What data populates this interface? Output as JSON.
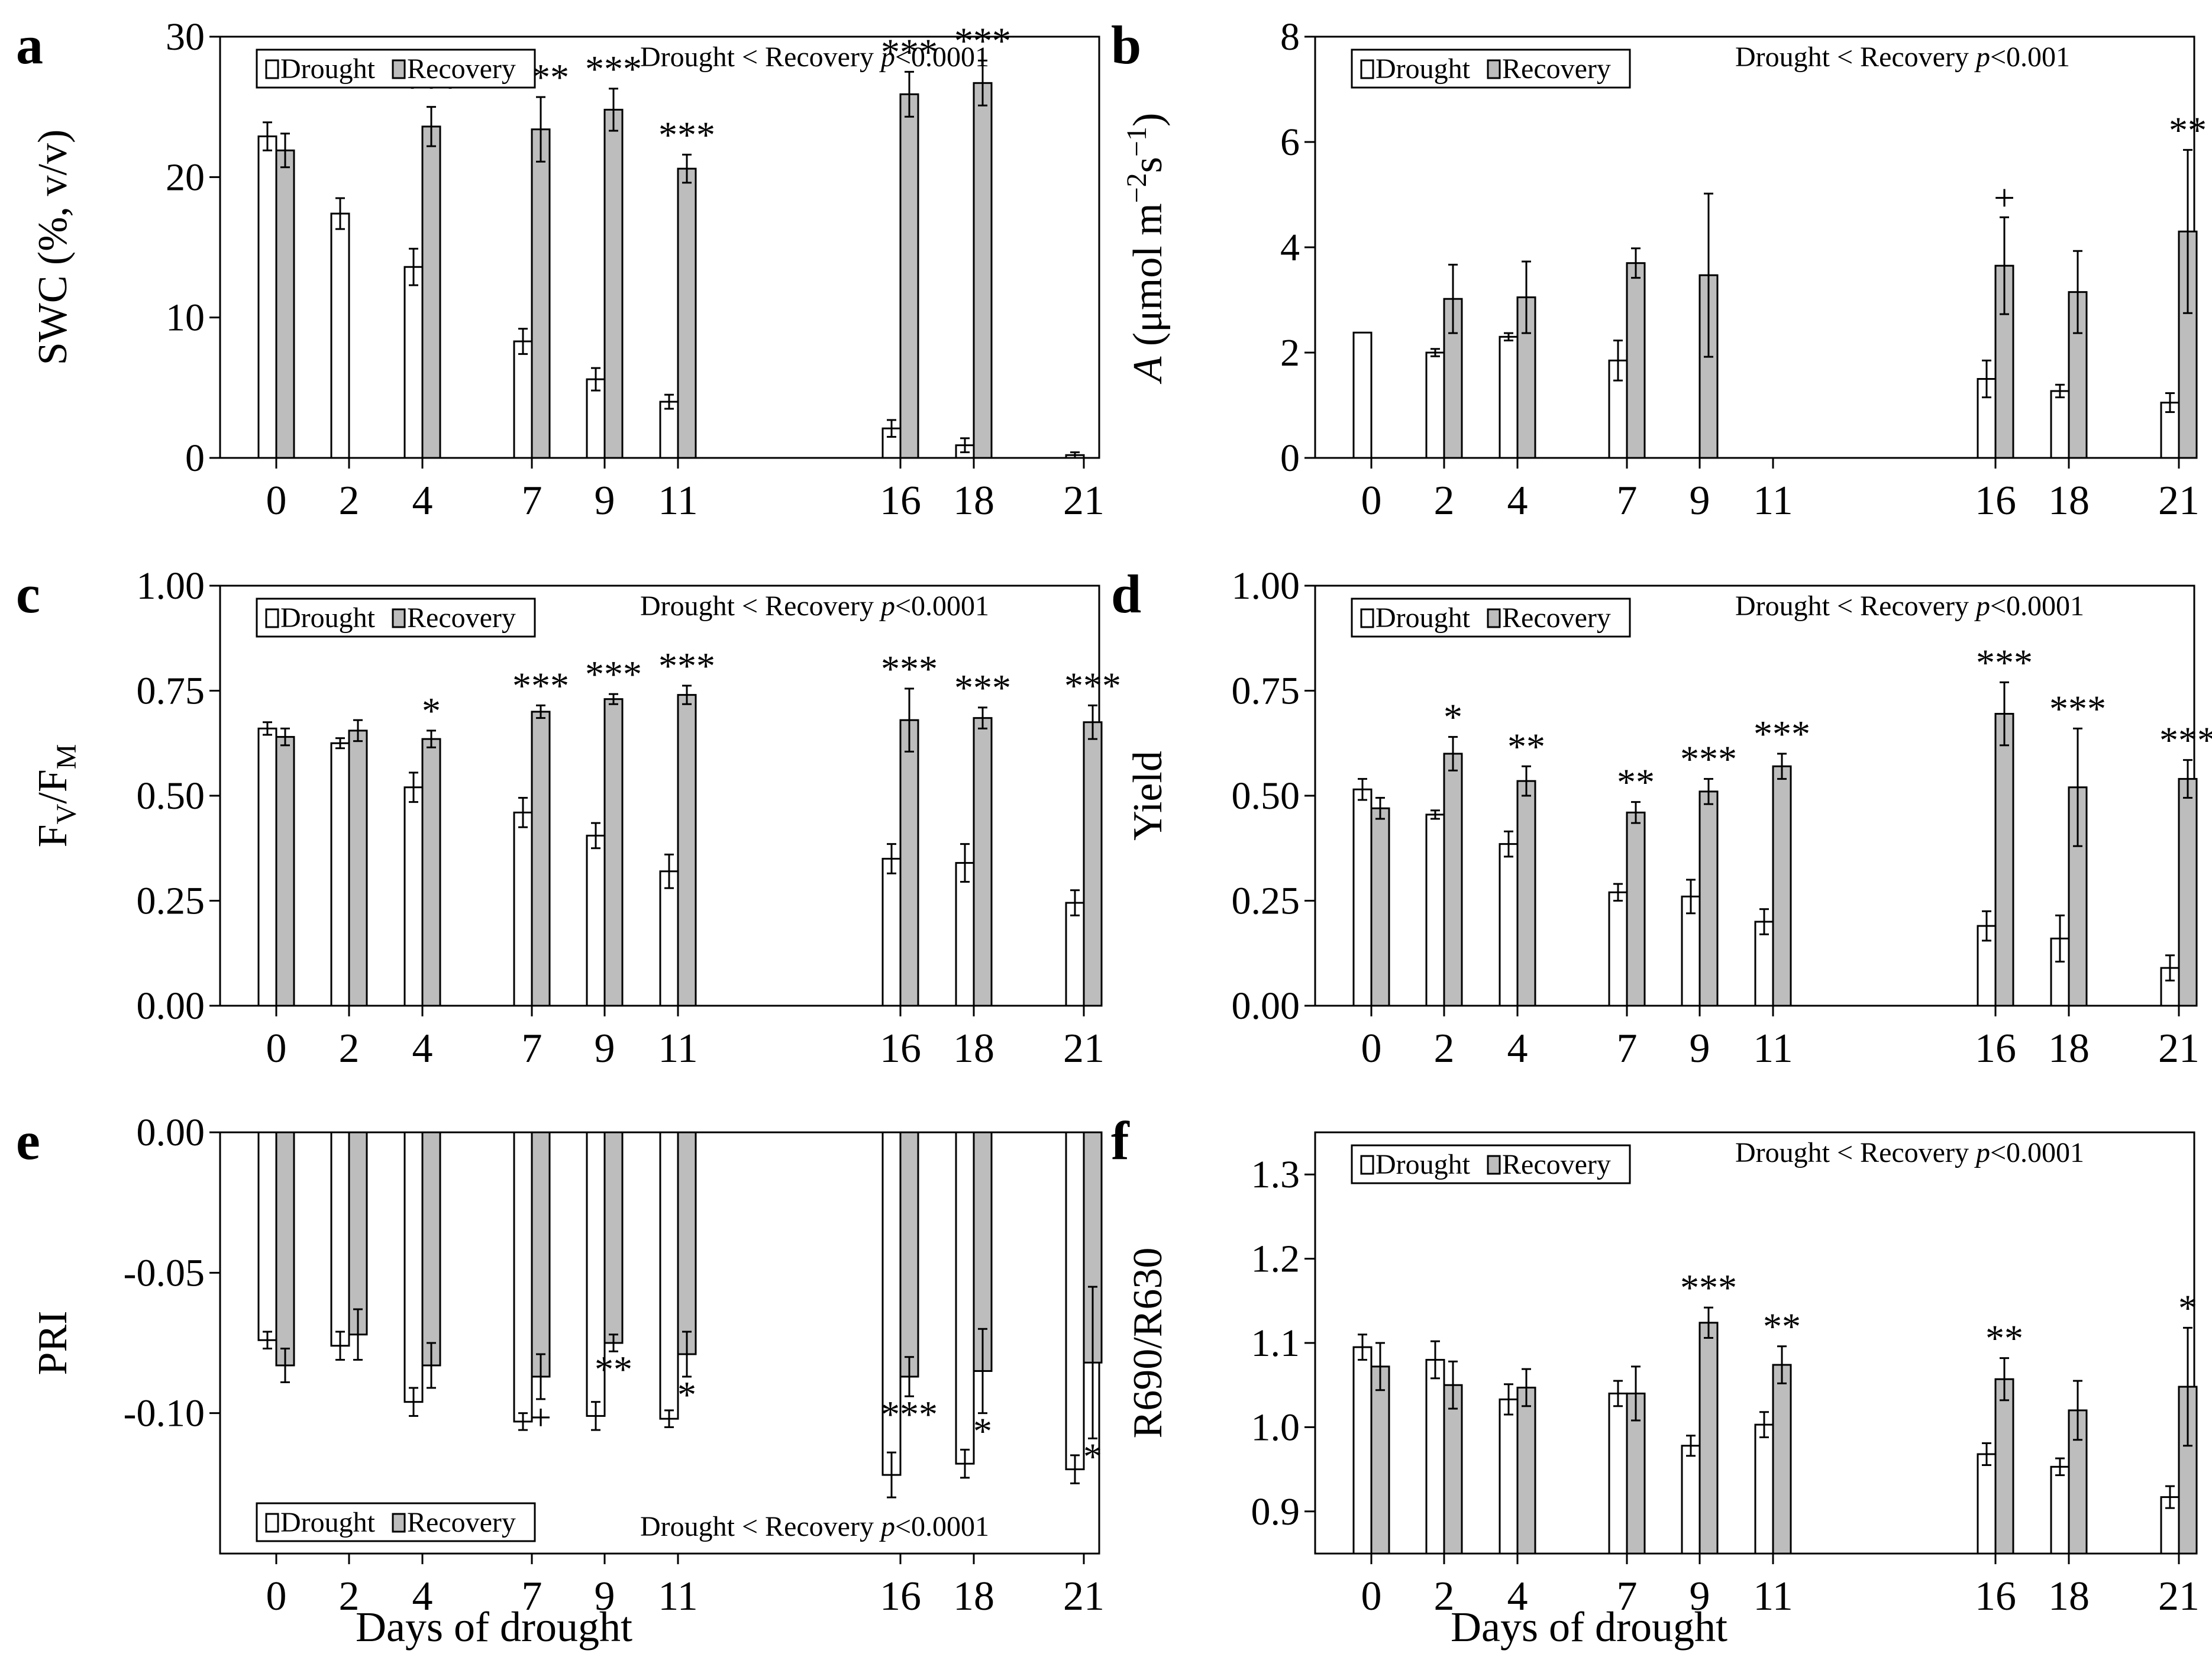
{
  "xlabel": "Days of drought",
  "legend": {
    "drought": "Drought",
    "recovery": "Recovery"
  },
  "colors": {
    "drought": "#ffffff",
    "recovery": "#bdbdbd",
    "stroke": "#000000"
  },
  "chart_data": [
    {
      "panel": "a",
      "type": "bar",
      "categories": [
        "0",
        "2",
        "4",
        "7",
        "9",
        "11",
        "16",
        "18",
        "21"
      ],
      "ylabel": "SWC (%, v/v)",
      "ylim": [
        0,
        30
      ],
      "yticks": [
        "0",
        "10",
        "20",
        "30"
      ],
      "annotation": "Drought < Recovery p<0.0001",
      "legend_position": "top-left",
      "series": [
        {
          "name": "Drought",
          "values": [
            22.9,
            17.4,
            13.6,
            8.3,
            5.6,
            4.0,
            2.1,
            0.9,
            0.2
          ],
          "errors": [
            1.0,
            1.1,
            1.3,
            0.9,
            0.8,
            0.5,
            0.6,
            0.5,
            0.2
          ]
        },
        {
          "name": "Recovery",
          "values": [
            21.9,
            null,
            23.6,
            23.4,
            24.8,
            20.6,
            25.9,
            26.7,
            null
          ],
          "errors": [
            1.2,
            null,
            1.4,
            2.3,
            1.5,
            1.0,
            1.6,
            1.6,
            null
          ]
        }
      ],
      "significance": [
        "",
        "",
        "***",
        "***",
        "***",
        "***",
        "***",
        "***",
        ""
      ],
      "sig_above": true
    },
    {
      "panel": "b",
      "type": "bar",
      "categories": [
        "0",
        "2",
        "4",
        "7",
        "9",
        "11",
        "16",
        "18",
        "21"
      ],
      "ylabel": "A (μmol m−2s−1)",
      "ylim": [
        0,
        8
      ],
      "yticks": [
        "0",
        "2",
        "4",
        "6",
        "8"
      ],
      "annotation": "Drought < Recovery p<0.001",
      "legend_position": "top-left",
      "series": [
        {
          "name": "Drought",
          "values": [
            2.38,
            2.0,
            2.3,
            1.85,
            null,
            null,
            1.5,
            1.27,
            1.05
          ],
          "errors": [
            null,
            0.07,
            0.07,
            0.38,
            null,
            null,
            0.35,
            0.12,
            0.18
          ]
        },
        {
          "name": "Recovery",
          "values": [
            null,
            3.02,
            3.05,
            3.7,
            3.47,
            null,
            3.65,
            3.15,
            4.3
          ],
          "errors": [
            null,
            0.65,
            0.68,
            0.28,
            1.55,
            null,
            0.92,
            0.78,
            1.55
          ]
        }
      ],
      "significance": [
        "",
        "",
        "",
        "",
        "",
        "",
        "+",
        "",
        "**"
      ],
      "sig_above": true
    },
    {
      "panel": "c",
      "type": "bar",
      "categories": [
        "0",
        "2",
        "4",
        "7",
        "9",
        "11",
        "16",
        "18",
        "21"
      ],
      "ylabel": "FV/FM",
      "ylim": [
        0,
        1
      ],
      "yticks": [
        "0.00",
        "0.25",
        "0.50",
        "0.75",
        "1.00"
      ],
      "annotation": "Drought < Recovery p<0.0001",
      "legend_position": "top-left",
      "series": [
        {
          "name": "Drought",
          "values": [
            0.66,
            0.625,
            0.52,
            0.46,
            0.405,
            0.32,
            0.35,
            0.34,
            0.245
          ],
          "errors": [
            0.015,
            0.012,
            0.035,
            0.035,
            0.03,
            0.04,
            0.035,
            0.045,
            0.03
          ]
        },
        {
          "name": "Recovery",
          "values": [
            0.64,
            0.655,
            0.635,
            0.7,
            0.73,
            0.74,
            0.68,
            0.685,
            0.675
          ],
          "errors": [
            0.02,
            0.025,
            0.02,
            0.015,
            0.012,
            0.022,
            0.075,
            0.025,
            0.04
          ]
        }
      ],
      "significance": [
        "",
        "",
        "*",
        "***",
        "***",
        "***",
        "***",
        "***",
        "***"
      ],
      "sig_above": true
    },
    {
      "panel": "d",
      "type": "bar",
      "categories": [
        "0",
        "2",
        "4",
        "7",
        "9",
        "11",
        "16",
        "18",
        "21"
      ],
      "ylabel": "Yield",
      "ylim": [
        0,
        1
      ],
      "yticks": [
        "0.00",
        "0.25",
        "0.50",
        "0.75",
        "1.00"
      ],
      "annotation": "Drought < Recovery p<0.0001",
      "legend_position": "top-left",
      "series": [
        {
          "name": "Drought",
          "values": [
            0.515,
            0.455,
            0.385,
            0.27,
            0.26,
            0.2,
            0.19,
            0.16,
            0.09
          ],
          "errors": [
            0.025,
            0.01,
            0.03,
            0.02,
            0.04,
            0.03,
            0.035,
            0.055,
            0.03
          ]
        },
        {
          "name": "Recovery",
          "values": [
            0.47,
            0.6,
            0.535,
            0.46,
            0.51,
            0.57,
            0.695,
            0.52,
            0.54
          ],
          "errors": [
            0.025,
            0.04,
            0.035,
            0.025,
            0.03,
            0.03,
            0.075,
            0.14,
            0.045
          ]
        }
      ],
      "significance": [
        "",
        "*",
        "**",
        "**",
        "***",
        "***",
        "***",
        "***",
        "***"
      ],
      "sig_above": true
    },
    {
      "panel": "e",
      "type": "bar",
      "categories": [
        "0",
        "2",
        "4",
        "7",
        "9",
        "11",
        "16",
        "18",
        "21"
      ],
      "ylabel": "PRI",
      "ylim": [
        -0.15,
        0
      ],
      "yticks": [
        "0.00",
        "-0.05",
        "-0.10"
      ],
      "ytick_values": [
        0,
        -0.05,
        -0.1
      ],
      "annotation": "Drought < Recovery p<0.0001",
      "legend_position": "bottom-left",
      "series": [
        {
          "name": "Drought",
          "values": [
            -0.074,
            -0.076,
            -0.096,
            -0.103,
            -0.101,
            -0.102,
            -0.122,
            -0.118,
            -0.12
          ],
          "errors": [
            0.003,
            0.005,
            0.005,
            0.003,
            0.005,
            0.003,
            0.008,
            0.005,
            0.005
          ]
        },
        {
          "name": "Recovery",
          "values": [
            -0.083,
            -0.072,
            -0.083,
            -0.087,
            -0.075,
            -0.079,
            -0.087,
            -0.085,
            -0.082
          ],
          "errors": [
            0.006,
            0.009,
            0.008,
            0.008,
            0.003,
            0.008,
            0.007,
            0.015,
            0.027
          ]
        }
      ],
      "significance": [
        "",
        "",
        "",
        "+",
        "**",
        "*",
        "***",
        "*",
        "*"
      ],
      "sig_above": false
    },
    {
      "panel": "f",
      "type": "bar",
      "categories": [
        "0",
        "2",
        "4",
        "7",
        "9",
        "11",
        "16",
        "18",
        "21"
      ],
      "ylabel": "R690/R630",
      "ylim": [
        0.85,
        1.35
      ],
      "yticks": [
        "0.9",
        "1.0",
        "1.1",
        "1.2",
        "1.3"
      ],
      "ytick_values": [
        0.9,
        1.0,
        1.1,
        1.2,
        1.3
      ],
      "annotation": "Drought < Recovery p<0.0001",
      "legend_position": "top-left",
      "series": [
        {
          "name": "Drought",
          "values": [
            1.095,
            1.08,
            1.033,
            1.04,
            0.978,
            1.003,
            0.968,
            0.953,
            0.917
          ],
          "errors": [
            0.015,
            0.022,
            0.018,
            0.015,
            0.012,
            0.015,
            0.013,
            0.01,
            0.013
          ]
        },
        {
          "name": "Recovery",
          "values": [
            1.072,
            1.05,
            1.047,
            1.04,
            1.124,
            1.074,
            1.057,
            1.02,
            1.048
          ],
          "errors": [
            0.028,
            0.028,
            0.022,
            0.032,
            0.018,
            0.022,
            0.025,
            0.035,
            0.07
          ]
        }
      ],
      "significance": [
        "",
        "",
        "",
        "",
        "***",
        "**",
        "**",
        "",
        "*"
      ],
      "sig_above": true
    }
  ]
}
